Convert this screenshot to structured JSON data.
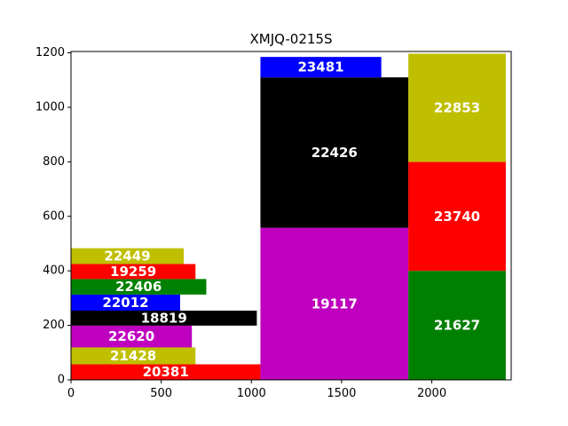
{
  "chart_data": {
    "type": "bar",
    "title": "XMJQ-0215S",
    "xlabel": "",
    "ylabel": "",
    "xlim": [
      0,
      2440
    ],
    "ylim": [
      0,
      1205
    ],
    "xticks": [
      0,
      500,
      1000,
      1500,
      2000
    ],
    "yticks": [
      0,
      200,
      400,
      600,
      800,
      1000,
      1200
    ],
    "grid": false,
    "rects": [
      {
        "label": "20381",
        "x": [
          0,
          1050
        ],
        "y": [
          0,
          57
        ],
        "color": "#ff0000"
      },
      {
        "label": "21428",
        "x": [
          0,
          690
        ],
        "y": [
          57,
          119
        ],
        "color": "#bfbf00"
      },
      {
        "label": "22620",
        "x": [
          0,
          670
        ],
        "y": [
          119,
          199
        ],
        "color": "#bf00bf"
      },
      {
        "label": "18819",
        "x": [
          0,
          1030
        ],
        "y": [
          199,
          254
        ],
        "color": "#000000"
      },
      {
        "label": "22012",
        "x": [
          0,
          605
        ],
        "y": [
          254,
          313
        ],
        "color": "#0000ff"
      },
      {
        "label": "22406",
        "x": [
          0,
          750
        ],
        "y": [
          313,
          370
        ],
        "color": "#008000"
      },
      {
        "label": "19259",
        "x": [
          0,
          690
        ],
        "y": [
          370,
          425
        ],
        "color": "#ff0000"
      },
      {
        "label": "22449",
        "x": [
          0,
          625
        ],
        "y": [
          425,
          483
        ],
        "color": "#bfbf00"
      },
      {
        "label": "19117",
        "x": [
          1050,
          1870
        ],
        "y": [
          0,
          558
        ],
        "color": "#bf00bf"
      },
      {
        "label": "22426",
        "x": [
          1050,
          1870
        ],
        "y": [
          558,
          1110
        ],
        "color": "#000000"
      },
      {
        "label": "23481",
        "x": [
          1050,
          1720
        ],
        "y": [
          1110,
          1185
        ],
        "color": "#0000ff"
      },
      {
        "label": "21627",
        "x": [
          1870,
          2410
        ],
        "y": [
          0,
          400
        ],
        "color": "#008000"
      },
      {
        "label": "23740",
        "x": [
          1870,
          2410
        ],
        "y": [
          400,
          800
        ],
        "color": "#ff0000"
      },
      {
        "label": "22853",
        "x": [
          1870,
          2410
        ],
        "y": [
          800,
          1197
        ],
        "color": "#bfbf00"
      }
    ]
  }
}
